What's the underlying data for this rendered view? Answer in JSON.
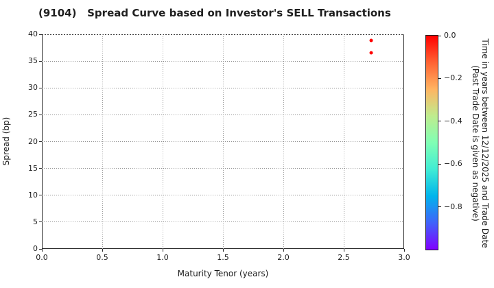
{
  "chart_data": {
    "type": "scatter",
    "title": "(9104)   Spread Curve based on Investor's SELL Transactions",
    "xlabel": "Maturity Tenor (years)",
    "ylabel": "Spread (bp)",
    "xlim": [
      0.0,
      3.0
    ],
    "ylim": [
      0,
      40
    ],
    "grid": true,
    "grid_style": "dotted",
    "legend_position": "none",
    "xticks": [
      {
        "value": 0.0,
        "label": "0.0"
      },
      {
        "value": 0.5,
        "label": "0.5"
      },
      {
        "value": 1.0,
        "label": "1.0"
      },
      {
        "value": 1.5,
        "label": "1.5"
      },
      {
        "value": 2.0,
        "label": "2.0"
      },
      {
        "value": 2.5,
        "label": "2.5"
      },
      {
        "value": 3.0,
        "label": "3.0"
      }
    ],
    "yticks": [
      {
        "value": 0,
        "label": "0"
      },
      {
        "value": 5,
        "label": "5"
      },
      {
        "value": 10,
        "label": "10"
      },
      {
        "value": 15,
        "label": "15"
      },
      {
        "value": 20,
        "label": "20"
      },
      {
        "value": 25,
        "label": "25"
      },
      {
        "value": 30,
        "label": "30"
      },
      {
        "value": 35,
        "label": "35"
      },
      {
        "value": 40,
        "label": "40"
      }
    ],
    "series": [
      {
        "name": "SELL transactions",
        "marker": "circle",
        "points": [
          {
            "x": 2.73,
            "y": 38.8,
            "color": "#ff0000",
            "time_value": 0.0
          },
          {
            "x": 2.73,
            "y": 36.6,
            "color": "#ff0000",
            "time_value": 0.0
          }
        ]
      }
    ],
    "colorbar": {
      "label_line1": "Time in years between 12/12/2025 and Trade Date",
      "label_line2": "(Past Trade Date is given as negative)",
      "range_top": 0.0,
      "range_bottom": -1.0,
      "ticks": [
        {
          "value": 0.0,
          "label": "0.0"
        },
        {
          "value": -0.2,
          "label": "−0.2"
        },
        {
          "value": -0.4,
          "label": "−0.4"
        },
        {
          "value": -0.6,
          "label": "−0.6"
        },
        {
          "value": -0.8,
          "label": "−0.8"
        }
      ],
      "colormap": "rainbow",
      "gradient_stops": [
        "#ff0000",
        "#ff6232",
        "#ffb462",
        "#bfec8e",
        "#80ffb4",
        "#40ecd4",
        "#00b4ec",
        "#4062fa",
        "#8000ff"
      ]
    },
    "colors": {
      "marker_red": "#ff0000",
      "spine": "#2b2b2b",
      "grid": "#999999",
      "background": "#ffffff"
    }
  }
}
